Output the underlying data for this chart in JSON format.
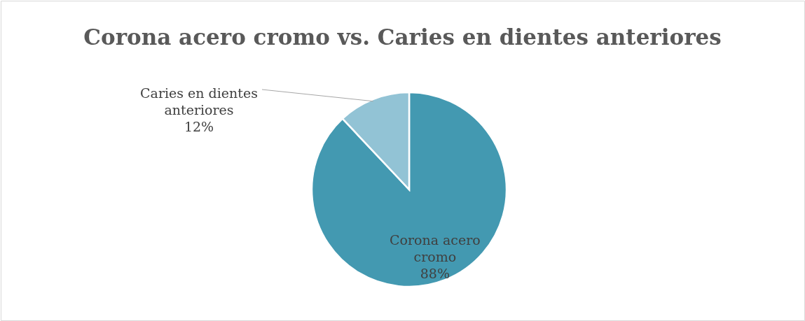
{
  "chart_data": {
    "type": "pie",
    "title": "Corona acero cromo vs. Caries en dientes anteriores",
    "categories": [
      "Corona acero cromo",
      "Caries en dientes anteriores"
    ],
    "values": [
      88,
      12
    ],
    "colors": [
      "#4399b1",
      "#92c3d5"
    ],
    "value_labels": [
      "88%",
      "12%"
    ]
  }
}
